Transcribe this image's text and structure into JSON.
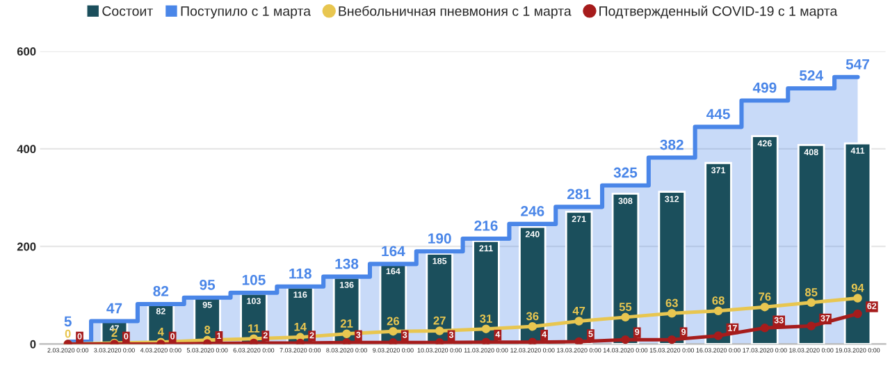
{
  "chart_data": {
    "type": "bar",
    "categories": [
      "2.03.2020 0:00",
      "3.03.2020 0:00",
      "4.03.2020 0:00",
      "5.03.2020 0:00",
      "6.03.2020 0:00",
      "7.03.2020 0:00",
      "8.03.2020 0:00",
      "9.03.2020 0:00",
      "10.03.2020 0:00",
      "11.03.2020 0:00",
      "12.03.2020 0:00",
      "13.03.2020 0:00",
      "14.03.2020 0:00",
      "15.03.2020 0:00",
      "16.03.2020 0:00",
      "17.03.2020 0:00",
      "18.03.2020 0:00",
      "19.03.2020 0:00"
    ],
    "series": [
      {
        "name": "Состоит",
        "color": "#1b4f5c",
        "values": [
          null,
          47,
          82,
          95,
          103,
          116,
          136,
          164,
          185,
          211,
          240,
          271,
          308,
          312,
          371,
          426,
          408,
          411
        ]
      },
      {
        "name": "Поступило с 1 марта",
        "type": "step",
        "color": "#4a86e8",
        "values": [
          5,
          47,
          82,
          95,
          105,
          118,
          138,
          164,
          190,
          216,
          246,
          281,
          325,
          382,
          445,
          499,
          524,
          547
        ]
      },
      {
        "name": "Внебольничная пневмония с 1 марта",
        "type": "line",
        "marker": "circle",
        "color": "#e8c650",
        "values": [
          0,
          2,
          4,
          8,
          11,
          14,
          21,
          26,
          27,
          31,
          36,
          47,
          55,
          63,
          68,
          76,
          85,
          94
        ]
      },
      {
        "name": "Подтвержденный COVID-19 с 1 марта",
        "type": "line",
        "marker": "circle",
        "color": "#a61c1c",
        "values": [
          0,
          0,
          0,
          1,
          2,
          2,
          3,
          3,
          3,
          4,
          4,
          5,
          9,
          9,
          17,
          33,
          37,
          62
        ]
      }
    ],
    "ylim": [
      0,
      600
    ],
    "yticks": [
      0,
      200,
      400,
      600
    ],
    "grid": "y",
    "legend": "top",
    "data_labels": true
  }
}
